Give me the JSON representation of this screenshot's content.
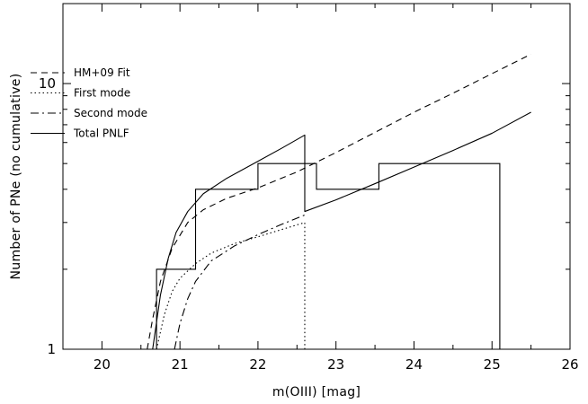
{
  "chart_data": {
    "type": "line",
    "title": "",
    "xlabel": "m(OIII) [mag]",
    "ylabel": "Number of PNe (no cumulative)",
    "xlim": [
      19.5,
      26
    ],
    "ylim": [
      1,
      20
    ],
    "yscale": "log",
    "x_ticks": [
      20,
      21,
      22,
      23,
      24,
      25,
      26
    ],
    "y_ticks": [
      {
        "value": 1,
        "label": "1"
      },
      {
        "value": 10,
        "label": "10"
      }
    ],
    "legend_position": "top-left",
    "series": [
      {
        "name": "HM+09 Fit",
        "style": "dashed",
        "x": [
          20.58,
          20.65,
          20.75,
          20.9,
          21.1,
          21.3,
          21.6,
          22.0,
          22.5,
          23.0,
          23.5,
          24.0,
          24.5,
          25.0,
          25.5
        ],
        "y": [
          1.0,
          1.3,
          1.8,
          2.4,
          3.0,
          3.35,
          3.7,
          4.05,
          4.65,
          5.5,
          6.55,
          7.8,
          9.2,
          10.9,
          12.9
        ]
      },
      {
        "name": "First mode",
        "style": "dotted",
        "x": [
          20.7,
          20.8,
          20.9,
          21.0,
          21.2,
          21.4,
          21.7,
          22.0,
          22.3,
          22.6,
          22.6
        ],
        "y": [
          1.0,
          1.35,
          1.65,
          1.85,
          2.1,
          2.3,
          2.5,
          2.65,
          2.82,
          3.0,
          1.0
        ]
      },
      {
        "name": "Second mode",
        "style": "dashdot",
        "x": [
          20.93,
          21.0,
          21.1,
          21.2,
          21.4,
          21.7,
          22.0,
          22.3,
          22.6
        ],
        "y": [
          1.0,
          1.25,
          1.55,
          1.8,
          2.15,
          2.45,
          2.7,
          2.95,
          3.2
        ]
      },
      {
        "name": "Total PNLF",
        "style": "solid",
        "x": [
          20.65,
          20.75,
          20.85,
          20.95,
          21.1,
          21.3,
          21.6,
          22.0,
          22.3,
          22.6,
          22.6,
          23.0,
          23.5,
          24.0,
          24.5,
          25.0,
          25.5
        ],
        "y": [
          1.0,
          1.6,
          2.2,
          2.75,
          3.3,
          3.85,
          4.4,
          5.1,
          5.7,
          6.4,
          3.3,
          3.65,
          4.2,
          4.85,
          5.6,
          6.5,
          7.8
        ]
      },
      {
        "name": "",
        "style": "histogram",
        "bin_edges": [
          20.7,
          21.2,
          22.0,
          22.75,
          23.55,
          25.1
        ],
        "counts": [
          2,
          4,
          5,
          4,
          5
        ]
      }
    ]
  }
}
